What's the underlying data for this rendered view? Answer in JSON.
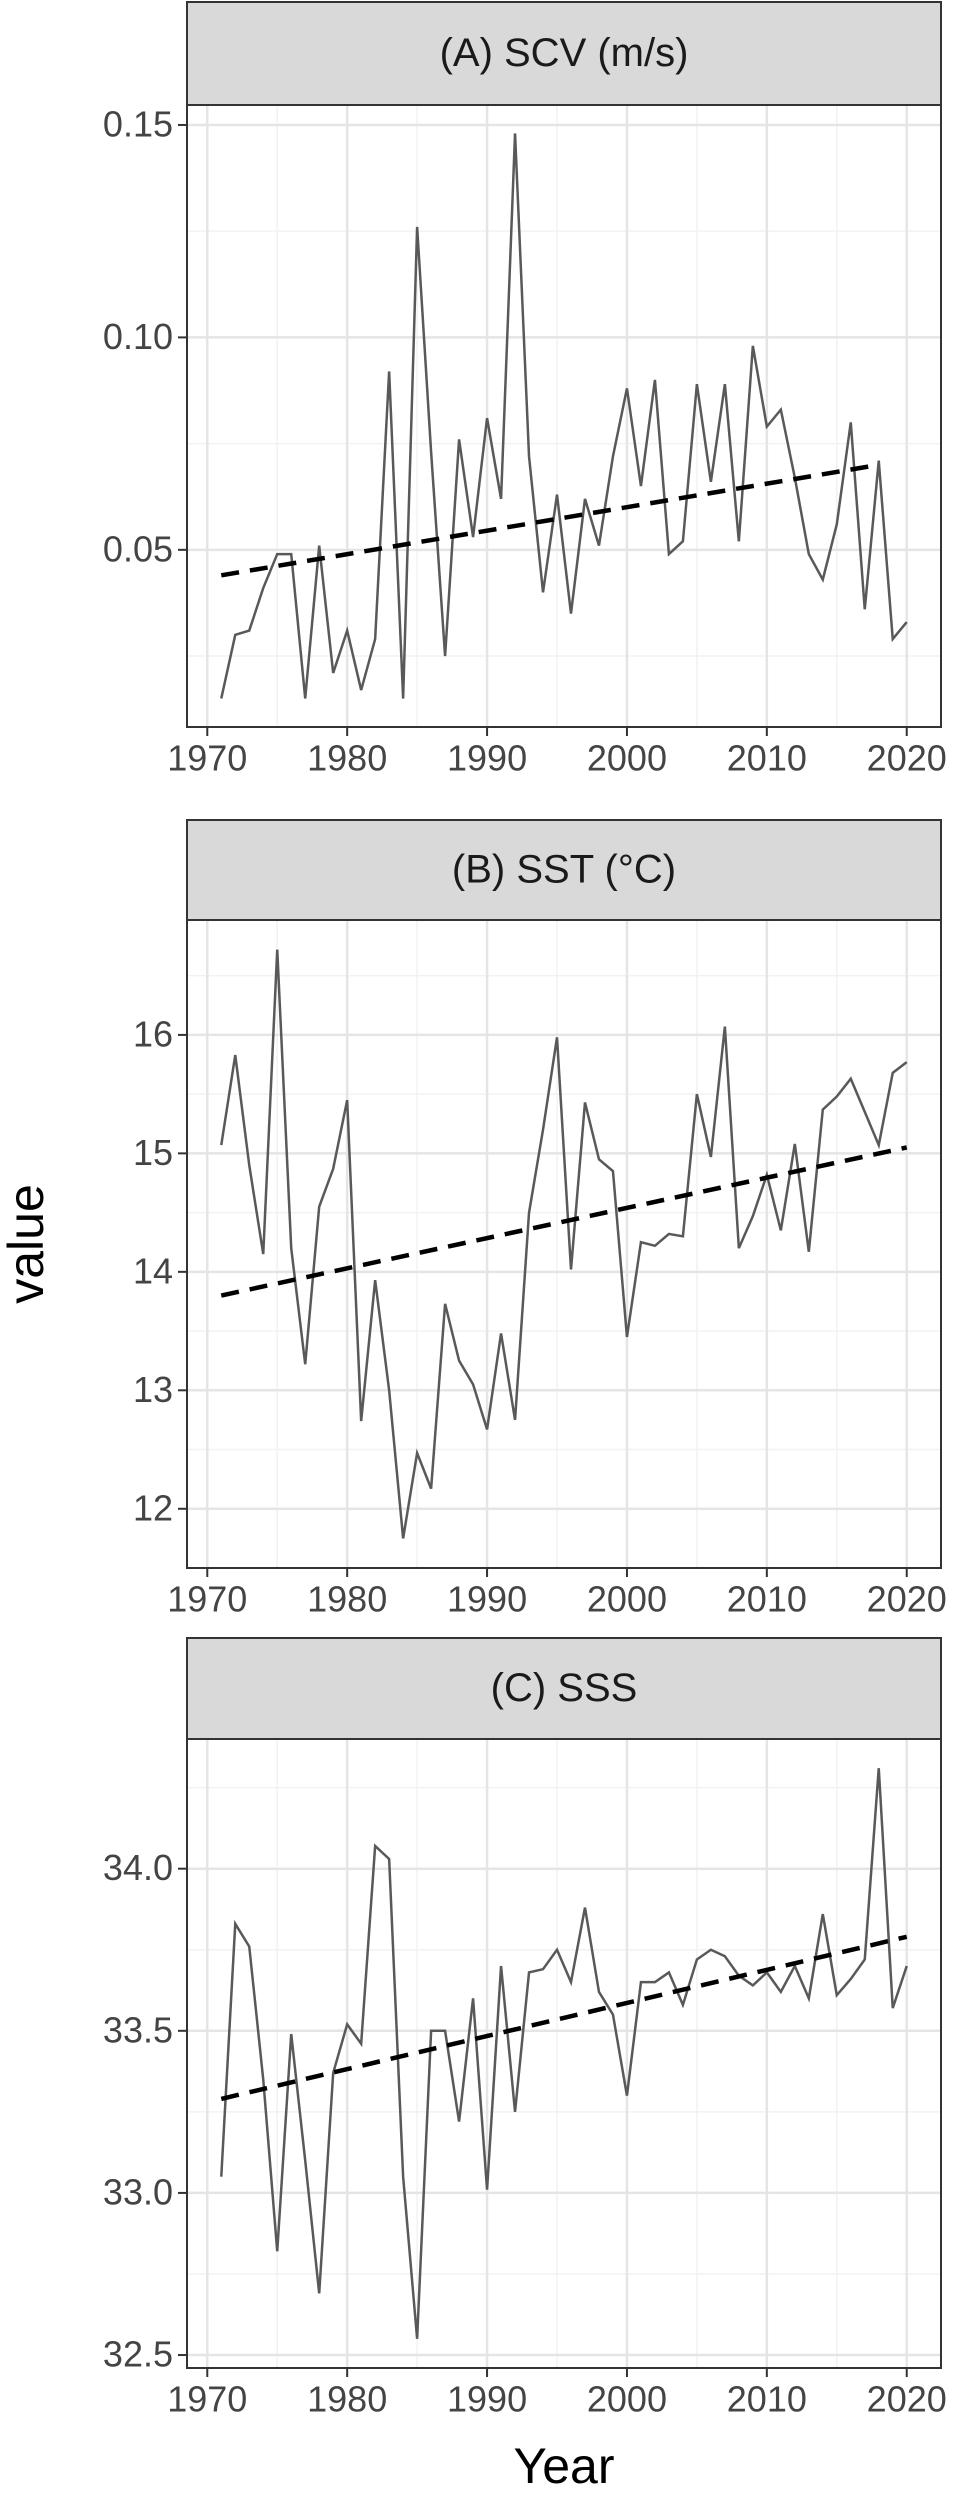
{
  "chart_data": [
    {
      "type": "line",
      "title": "(A) SCV (m/s)",
      "x": [
        1971,
        1972,
        1973,
        1974,
        1975,
        1976,
        1977,
        1978,
        1979,
        1980,
        1981,
        1982,
        1983,
        1984,
        1985,
        1986,
        1987,
        1988,
        1989,
        1990,
        1991,
        1992,
        1993,
        1994,
        1995,
        1996,
        1997,
        1998,
        1999,
        2000,
        2001,
        2002,
        2003,
        2004,
        2005,
        2006,
        2007,
        2008,
        2009,
        2010,
        2011,
        2012,
        2013,
        2014,
        2015,
        2016,
        2017,
        2018,
        2019,
        2020
      ],
      "values": [
        0.015,
        0.03,
        0.031,
        0.041,
        0.049,
        0.049,
        0.015,
        0.051,
        0.021,
        0.031,
        0.017,
        0.029,
        0.092,
        0.015,
        0.126,
        0.073,
        0.025,
        0.076,
        0.053,
        0.081,
        0.062,
        0.148,
        0.072,
        0.04,
        0.063,
        0.035,
        0.062,
        0.051,
        0.072,
        0.088,
        0.065,
        0.09,
        0.049,
        0.052,
        0.089,
        0.066,
        0.089,
        0.052,
        0.098,
        0.079,
        0.083,
        0.067,
        0.049,
        0.043,
        0.056,
        0.08,
        0.036,
        0.071,
        0.029,
        0.033
      ],
      "color": "#595959",
      "trend": {
        "x": [
          1971,
          2018
        ],
        "values": [
          0.044,
          0.07
        ],
        "color": "#000000"
      },
      "xlim": [
        1968.55,
        2022.45
      ],
      "ylim": [
        0.0083,
        0.1547
      ],
      "xticks": [
        1970,
        1980,
        1990,
        2000,
        2010,
        2020
      ],
      "yticks": [
        {
          "value": 0.05,
          "label": "0.05"
        },
        {
          "value": 0.1,
          "label": "0.10"
        },
        {
          "value": 0.15,
          "label": "0.15"
        }
      ],
      "grid": true
    },
    {
      "type": "line",
      "title": "(B) SST (°C)",
      "ylabel": "value",
      "x": [
        1971,
        1972,
        1973,
        1974,
        1975,
        1976,
        1977,
        1978,
        1979,
        1980,
        1981,
        1982,
        1983,
        1984,
        1985,
        1986,
        1987,
        1988,
        1989,
        1990,
        1991,
        1992,
        1993,
        1994,
        1995,
        1996,
        1997,
        1998,
        1999,
        2000,
        2001,
        2002,
        2003,
        2004,
        2005,
        2006,
        2007,
        2008,
        2009,
        2010,
        2011,
        2012,
        2013,
        2014,
        2015,
        2016,
        2017,
        2018,
        2019,
        2020
      ],
      "values": [
        15.07,
        15.83,
        14.9,
        14.15,
        16.72,
        14.2,
        13.22,
        14.55,
        14.87,
        15.45,
        12.74,
        13.93,
        13.0,
        11.75,
        12.47,
        12.17,
        13.73,
        13.25,
        13.05,
        12.67,
        13.48,
        12.75,
        14.5,
        15.2,
        15.98,
        14.02,
        15.43,
        14.95,
        14.85,
        13.45,
        14.25,
        14.22,
        14.32,
        14.3,
        15.5,
        14.97,
        16.07,
        14.2,
        14.47,
        14.82,
        14.35,
        15.08,
        14.17,
        15.37,
        15.48,
        15.63,
        15.35,
        15.07,
        15.68,
        15.77
      ],
      "color": "#595959",
      "trend": {
        "x": [
          1971,
          2020
        ],
        "values": [
          13.8,
          15.05
        ],
        "color": "#000000"
      },
      "xlim": [
        1968.55,
        2022.45
      ],
      "ylim": [
        11.5,
        16.97
      ],
      "xticks": [
        1970,
        1980,
        1990,
        2000,
        2010,
        2020
      ],
      "yticks": [
        12,
        13,
        14,
        15,
        16
      ],
      "grid": true
    },
    {
      "type": "line",
      "title": "(C) SSS",
      "xlabel": "Year",
      "x": [
        1971,
        1972,
        1973,
        1974,
        1975,
        1976,
        1977,
        1978,
        1979,
        1980,
        1981,
        1982,
        1983,
        1984,
        1985,
        1986,
        1987,
        1988,
        1989,
        1990,
        1991,
        1992,
        1993,
        1994,
        1995,
        1996,
        1997,
        1998,
        1999,
        2000,
        2001,
        2002,
        2003,
        2004,
        2005,
        2006,
        2007,
        2008,
        2009,
        2010,
        2011,
        2012,
        2013,
        2014,
        2015,
        2016,
        2017,
        2018,
        2019,
        2020
      ],
      "values": [
        33.05,
        33.83,
        33.76,
        33.35,
        32.82,
        33.49,
        33.1,
        32.69,
        33.37,
        33.52,
        33.46,
        34.07,
        34.03,
        33.05,
        32.55,
        33.5,
        33.5,
        33.22,
        33.6,
        33.01,
        33.7,
        33.25,
        33.68,
        33.69,
        33.75,
        33.65,
        33.88,
        33.62,
        33.55,
        33.3,
        33.65,
        33.65,
        33.68,
        33.58,
        33.72,
        33.75,
        33.73,
        33.67,
        33.64,
        33.68,
        33.62,
        33.7,
        33.6,
        33.86,
        33.61,
        33.66,
        33.72,
        34.31,
        33.57,
        33.7
      ],
      "color": "#595959",
      "trend": {
        "x": [
          1971,
          2020
        ],
        "values": [
          33.29,
          33.79
        ],
        "color": "#000000"
      },
      "xlim": [
        1968.55,
        2022.45
      ],
      "ylim": [
        32.46,
        34.4
      ],
      "xticks": [
        1970,
        1980,
        1990,
        2000,
        2010,
        2020
      ],
      "yticks": [
        32.5,
        {
          "value": 33,
          "label": "33.0"
        },
        33.5,
        {
          "value": 34,
          "label": "34.0"
        }
      ],
      "grid": true
    }
  ]
}
